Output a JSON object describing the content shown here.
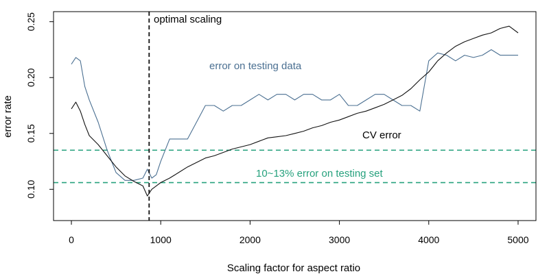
{
  "chart_data": {
    "type": "line",
    "title": "",
    "xlabel": "Scaling factor for aspect ratio",
    "ylabel": "error rate",
    "xlim": [
      -200,
      5200
    ],
    "ylim": [
      0.072,
      0.259
    ],
    "x_ticks": [
      0,
      1000,
      2000,
      3000,
      4000,
      5000
    ],
    "y_ticks": [
      0.1,
      0.15,
      0.2,
      0.25
    ],
    "grid": false,
    "legend": "none",
    "colors": {
      "cv": "#111111",
      "test": "#4a6f91",
      "bands": "#26a17d",
      "optimal": "#111111"
    },
    "series": [
      {
        "key": "test",
        "x": [
          0,
          50,
          100,
          150,
          200,
          300,
          400,
          500,
          600,
          700,
          800,
          850,
          900,
          950,
          1000,
          1100,
          1200,
          1300,
          1400,
          1500,
          1600,
          1700,
          1800,
          1900,
          2000,
          2100,
          2200,
          2300,
          2400,
          2500,
          2600,
          2700,
          2800,
          2900,
          3000,
          3100,
          3200,
          3300,
          3400,
          3500,
          3600,
          3700,
          3800,
          3900,
          4000,
          4100,
          4200,
          4300,
          4400,
          4500,
          4600,
          4700,
          4800,
          4900,
          5000
        ],
        "y": [
          0.212,
          0.218,
          0.215,
          0.192,
          0.18,
          0.16,
          0.135,
          0.115,
          0.108,
          0.108,
          0.11,
          0.118,
          0.11,
          0.113,
          0.125,
          0.145,
          0.145,
          0.145,
          0.16,
          0.175,
          0.175,
          0.17,
          0.175,
          0.175,
          0.18,
          0.185,
          0.18,
          0.185,
          0.185,
          0.18,
          0.185,
          0.185,
          0.18,
          0.18,
          0.185,
          0.175,
          0.175,
          0.18,
          0.185,
          0.185,
          0.18,
          0.175,
          0.175,
          0.17,
          0.215,
          0.222,
          0.22,
          0.215,
          0.22,
          0.218,
          0.22,
          0.225,
          0.22,
          0.22,
          0.22
        ]
      },
      {
        "key": "cv",
        "x": [
          0,
          50,
          100,
          150,
          200,
          300,
          400,
          500,
          600,
          700,
          800,
          850,
          900,
          950,
          1000,
          1100,
          1200,
          1300,
          1400,
          1500,
          1600,
          1700,
          1800,
          1900,
          2000,
          2100,
          2200,
          2300,
          2400,
          2500,
          2600,
          2700,
          2800,
          2900,
          3000,
          3100,
          3200,
          3300,
          3400,
          3500,
          3600,
          3700,
          3800,
          3900,
          4000,
          4100,
          4200,
          4300,
          4400,
          4500,
          4600,
          4700,
          4800,
          4900,
          5000
        ],
        "y": [
          0.172,
          0.178,
          0.17,
          0.158,
          0.148,
          0.14,
          0.13,
          0.12,
          0.112,
          0.107,
          0.103,
          0.094,
          0.1,
          0.103,
          0.106,
          0.11,
          0.115,
          0.12,
          0.124,
          0.128,
          0.13,
          0.133,
          0.136,
          0.138,
          0.14,
          0.143,
          0.146,
          0.147,
          0.148,
          0.15,
          0.152,
          0.155,
          0.157,
          0.16,
          0.162,
          0.165,
          0.168,
          0.17,
          0.173,
          0.176,
          0.18,
          0.184,
          0.19,
          0.198,
          0.205,
          0.215,
          0.222,
          0.228,
          0.232,
          0.235,
          0.238,
          0.24,
          0.244,
          0.246,
          0.24
        ]
      }
    ],
    "optimal_x": 870,
    "bands": [
      0.106,
      0.135
    ],
    "annotations": {
      "optimal": "optimal scaling",
      "test": "error on testing data",
      "cv": "CV error",
      "band": "10~13% error on testing set"
    }
  }
}
